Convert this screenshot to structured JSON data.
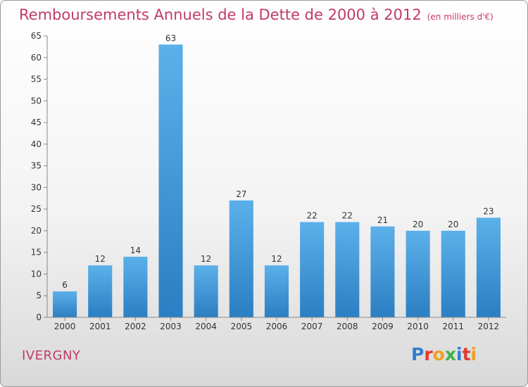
{
  "chart_data": {
    "type": "bar",
    "title": "Remboursements Annuels de la Dette de 2000 à 2012",
    "subtitle": "(en milliers d'€)",
    "categories": [
      "2000",
      "2001",
      "2002",
      "2003",
      "2004",
      "2005",
      "2006",
      "2007",
      "2008",
      "2009",
      "2010",
      "2011",
      "2012"
    ],
    "values": [
      6,
      12,
      14,
      63,
      12,
      27,
      12,
      22,
      22,
      21,
      20,
      20,
      23
    ],
    "xlabel": "",
    "ylabel": "",
    "ylim": [
      0,
      65
    ],
    "yticks": [
      0,
      5,
      10,
      15,
      20,
      25,
      30,
      35,
      40,
      45,
      50,
      55,
      60,
      65
    ],
    "grid": false,
    "bar_color": "#4a9fdc"
  },
  "footer": {
    "town": "IVERGNY",
    "logo_letters": [
      "P",
      "r",
      "o",
      "x",
      "i",
      "t",
      "i"
    ],
    "logo_colors": [
      "#2f7fd0",
      "#e23a2e",
      "#f0a020",
      "#3bb34a",
      "#2f7fd0",
      "#e23a2e",
      "#f0a020"
    ]
  }
}
